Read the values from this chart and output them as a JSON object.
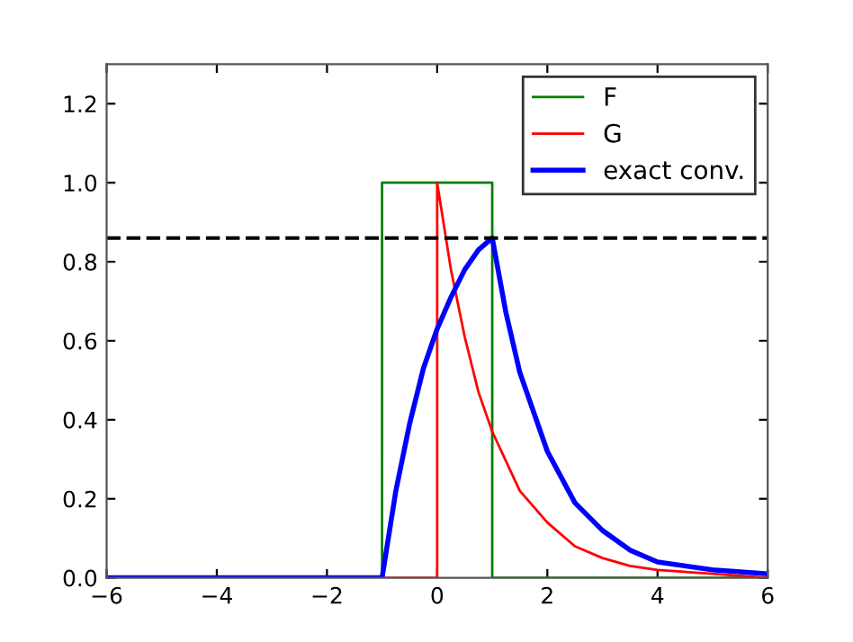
{
  "chart_data": {
    "type": "line",
    "xlim": [
      -6,
      6
    ],
    "ylim": [
      0,
      1.3
    ],
    "xticks": [
      {
        "value": -6,
        "label": "−6"
      },
      {
        "value": -4,
        "label": "−4"
      },
      {
        "value": -2,
        "label": "−2"
      },
      0,
      2,
      4,
      6
    ],
    "yticks": [
      {
        "value": 0,
        "label": "0.0"
      },
      {
        "value": 0.2,
        "label": "0.2"
      },
      {
        "value": 0.4,
        "label": "0.4"
      },
      {
        "value": 0.6,
        "label": "0.6"
      },
      {
        "value": 0.8,
        "label": "0.8"
      },
      {
        "value": 1,
        "label": "1.0"
      },
      {
        "value": 1.2,
        "label": "1.2"
      }
    ],
    "grid": false,
    "legend": "top right",
    "line_style": "solid",
    "marker": "none",
    "series": [
      {
        "name": "F",
        "color": "#008000",
        "x": [
          -6,
          -1,
          -1,
          1,
          1,
          6
        ],
        "values": [
          0,
          0,
          1,
          1,
          0,
          0
        ]
      },
      {
        "name": "G",
        "color": "#ff0000",
        "x": [
          -6,
          0,
          0,
          0.25,
          0.5,
          0.75,
          1,
          1.5,
          2,
          2.5,
          3,
          3.5,
          4,
          5,
          6
        ],
        "values": [
          0,
          0,
          1,
          0.78,
          0.61,
          0.47,
          0.37,
          0.22,
          0.14,
          0.08,
          0.05,
          0.03,
          0.02,
          0.01,
          0
        ]
      },
      {
        "name": "exact conv.",
        "color": "#0000ff",
        "x": [
          -6,
          -1,
          -0.75,
          -0.5,
          -0.25,
          0,
          0.25,
          0.5,
          0.75,
          1,
          1.25,
          1.5,
          2,
          2.5,
          3,
          3.5,
          4,
          5,
          6
        ],
        "values": [
          0,
          0,
          0.22,
          0.39,
          0.53,
          0.63,
          0.71,
          0.78,
          0.83,
          0.86,
          0.67,
          0.52,
          0.32,
          0.19,
          0.12,
          0.07,
          0.04,
          0.02,
          0.01
        ]
      }
    ],
    "ref_lines": [
      {
        "axis": "y",
        "value": 0.86,
        "color": "#000000",
        "line_style": "dashed"
      }
    ]
  }
}
